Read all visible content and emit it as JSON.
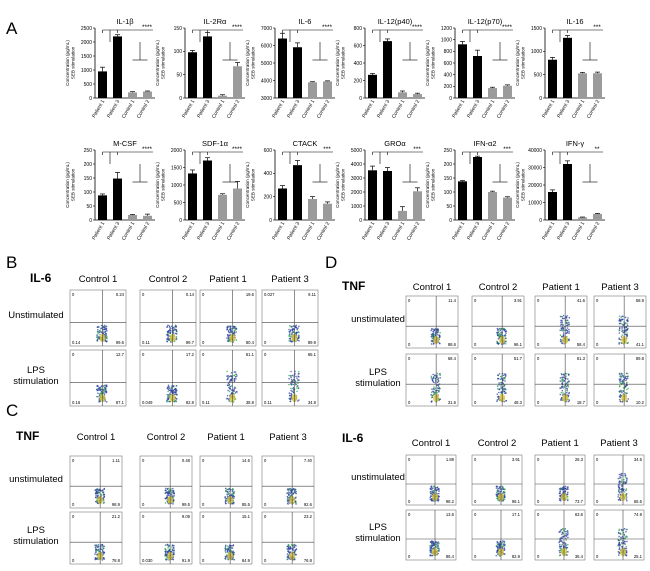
{
  "panel_labels": {
    "A": "A",
    "B": "B",
    "C": "C",
    "D": "D"
  },
  "bar_ylabel_lines": [
    "Concentration (pg/mL)",
    "SEB stimulation"
  ],
  "chart_data": [
    {
      "type": "bar",
      "title": "IL-1β",
      "categories": [
        "Patient 1",
        "Patient 3",
        "Control 1",
        "Control 2"
      ],
      "values": [
        950,
        2200,
        200,
        230
      ],
      "errors": [
        150,
        60,
        25,
        20
      ],
      "ylim": [
        0,
        2500
      ],
      "yticks": [
        0,
        500,
        1000,
        1500,
        2000,
        2500
      ],
      "sig": "****"
    },
    {
      "type": "bar",
      "title": "IL-2Rα",
      "categories": [
        "Patient 1",
        "Patient 3",
        "Control 1",
        "Control 2"
      ],
      "values": [
        98,
        132,
        5,
        68
      ],
      "errors": [
        4,
        8,
        2,
        8
      ],
      "ylim": [
        0,
        150
      ],
      "yticks": [
        0,
        50,
        100,
        150
      ],
      "sig": "****"
    },
    {
      "type": "bar",
      "title": "IL-6",
      "categories": [
        "Patient 1",
        "Patient 3",
        "Control 1",
        "Control 2"
      ],
      "values": [
        6400,
        5900,
        3900,
        3950
      ],
      "errors": [
        300,
        250,
        30,
        30
      ],
      "ylim": [
        3000,
        7000
      ],
      "yticks": [
        3000,
        4000,
        5000,
        6000,
        7000
      ],
      "sig": "****"
    },
    {
      "type": "bar",
      "title": "IL-12(p40)",
      "categories": [
        "Patient 1",
        "Patient 3",
        "Control 1",
        "Control 2"
      ],
      "values": [
        265,
        650,
        65,
        45
      ],
      "errors": [
        15,
        25,
        15,
        10
      ],
      "ylim": [
        0,
        800
      ],
      "yticks": [
        0,
        200,
        400,
        600,
        800
      ],
      "sig": "****"
    },
    {
      "type": "bar",
      "title": "IL-12(p70)",
      "categories": [
        "Patient 1",
        "Patient 3",
        "Control 1",
        "Control 2"
      ],
      "values": [
        920,
        720,
        170,
        210
      ],
      "errors": [
        50,
        100,
        15,
        15
      ],
      "ylim": [
        0,
        1200
      ],
      "yticks": [
        0,
        200,
        400,
        600,
        800,
        1000,
        1200
      ],
      "sig": "****"
    },
    {
      "type": "bar",
      "title": "IL-16",
      "categories": [
        "Patient 1",
        "Patient 3",
        "Control 1",
        "Control 2"
      ],
      "values": [
        820,
        1290,
        530,
        530
      ],
      "errors": [
        50,
        50,
        20,
        25
      ],
      "ylim": [
        0,
        1500
      ],
      "yticks": [
        0,
        500,
        1000,
        1500
      ],
      "sig": "***"
    },
    {
      "type": "bar",
      "title": "M-CSF",
      "categories": [
        "Patient 1",
        "Patient 3",
        "Control 1",
        "Control 2"
      ],
      "values": [
        88,
        148,
        18,
        15
      ],
      "errors": [
        5,
        22,
        2,
        6
      ],
      "ylim": [
        0,
        250
      ],
      "yticks": [
        0,
        50,
        100,
        150,
        200,
        250
      ],
      "sig": "****"
    },
    {
      "type": "bar",
      "title": "SDF-1α",
      "categories": [
        "Patient 1",
        "Patient 3",
        "Control 1",
        "Control 2"
      ],
      "values": [
        1330,
        1700,
        720,
        900
      ],
      "errors": [
        100,
        80,
        30,
        200
      ],
      "ylim": [
        0,
        2000
      ],
      "yticks": [
        0,
        500,
        1000,
        1500,
        2000
      ],
      "sig": "****"
    },
    {
      "type": "bar",
      "title": "CTACK",
      "categories": [
        "Patient 1",
        "Patient 3",
        "Control 1",
        "Control 2"
      ],
      "values": [
        270,
        470,
        180,
        140
      ],
      "errors": [
        25,
        40,
        20,
        15
      ],
      "ylim": [
        0,
        600
      ],
      "yticks": [
        0,
        200,
        400,
        600
      ],
      "sig": "***"
    },
    {
      "type": "bar",
      "title": "GROα",
      "categories": [
        "Patient 1",
        "Patient 3",
        "Control 1",
        "Control 2"
      ],
      "values": [
        3550,
        3500,
        650,
        2050
      ],
      "errors": [
        300,
        250,
        300,
        250
      ],
      "ylim": [
        0,
        5000
      ],
      "yticks": [
        0,
        1000,
        2000,
        3000,
        4000,
        5000
      ],
      "sig": "***"
    },
    {
      "type": "bar",
      "title": "IFN-α2",
      "categories": [
        "Patient 1",
        "Patient 3",
        "Control 1",
        "Control 2"
      ],
      "values": [
        138,
        225,
        100,
        80
      ],
      "errors": [
        3,
        3,
        3,
        3
      ],
      "ylim": [
        0,
        250
      ],
      "yticks": [
        0,
        50,
        100,
        150,
        200,
        250
      ],
      "sig": "***"
    },
    {
      "type": "bar",
      "title": "IFN-γ",
      "categories": [
        "Patient 1",
        "Patient 3",
        "Control 1",
        "Control 2"
      ],
      "values": [
        16000,
        32000,
        1500,
        3500
      ],
      "errors": [
        1200,
        1800,
        200,
        300
      ],
      "ylim": [
        0,
        40000
      ],
      "yticks": [
        0,
        10000,
        20000,
        30000,
        40000
      ],
      "sig": "**"
    }
  ],
  "flow_panels": [
    {
      "panel": "B",
      "title": "IL-6",
      "columns": [
        "Control 1",
        "Control 2",
        "Patient 1",
        "Patient 3"
      ],
      "rows": [
        {
          "label": [
            "Unstimulated"
          ],
          "cells": [
            {
              "ul": "0",
              "ur": "0.24",
              "ll": "0.14",
              "lr": "99.6"
            },
            {
              "ul": "0",
              "ur": "0.14",
              "ll": "0.11",
              "lr": "99.7"
            },
            {
              "ul": "0",
              "ur": "19.6",
              "ll": "0",
              "lr": "80.4"
            },
            {
              "ul": "0.027",
              "ur": "9.11",
              "ll": "0",
              "lr": "89.9"
            }
          ]
        },
        {
          "label": [
            "LPS",
            "stimulation"
          ],
          "cells": [
            {
              "ul": "0",
              "ur": "12.7",
              "ll": "0.16",
              "lr": "87.1"
            },
            {
              "ul": "0",
              "ur": "17.2",
              "ll": "0.049",
              "lr": "82.8"
            },
            {
              "ul": "0",
              "ur": "61.1",
              "ll": "0.11",
              "lr": "38.8"
            },
            {
              "ul": "0",
              "ur": "65.1",
              "ll": "0.11",
              "lr": "34.8"
            }
          ]
        }
      ]
    },
    {
      "panel": "C",
      "title": "TNF",
      "columns": [
        "Control 1",
        "Control 2",
        "Patient 1",
        "Patient 3"
      ],
      "rows": [
        {
          "label": [
            "unstimulated"
          ],
          "cells": [
            {
              "ul": "0",
              "ur": "1.11",
              "ll": "0",
              "lr": "98.9"
            },
            {
              "ul": "0",
              "ur": "0.48",
              "ll": "0",
              "lr": "99.5"
            },
            {
              "ul": "0",
              "ur": "14.5",
              "ll": "0",
              "lr": "85.5"
            },
            {
              "ul": "0",
              "ur": "7.40",
              "ll": "0",
              "lr": "92.6"
            }
          ]
        },
        {
          "label": [
            "LPS",
            "stimulation"
          ],
          "cells": [
            {
              "ul": "0",
              "ur": "21.2",
              "ll": "0",
              "lr": "78.8"
            },
            {
              "ul": "0",
              "ur": "9.09",
              "ll": "0.030",
              "lr": "91.9"
            },
            {
              "ul": "0",
              "ur": "15.1",
              "ll": "0",
              "lr": "84.9"
            },
            {
              "ul": "0",
              "ur": "23.2",
              "ll": "0",
              "lr": "76.8"
            }
          ]
        }
      ]
    },
    {
      "panel": "D",
      "title": "TNF",
      "columns": [
        "Control 1",
        "Control 2",
        "Patient 1",
        "Patient 3"
      ],
      "rows": [
        {
          "label": [
            "unstimulated"
          ],
          "cells": [
            {
              "ul": "0",
              "ur": "11.4",
              "ll": "0",
              "lr": "88.6"
            },
            {
              "ul": "0",
              "ur": "3.91",
              "ll": "0",
              "lr": "96.1"
            },
            {
              "ul": "0",
              "ur": "41.6",
              "ll": "0",
              "lr": "58.4"
            },
            {
              "ul": "0",
              "ur": "58.9",
              "ll": "0",
              "lr": "41.1"
            }
          ]
        },
        {
          "label": [
            "LPS",
            "stimulation"
          ],
          "cells": [
            {
              "ul": "0",
              "ur": "68.4",
              "ll": "0",
              "lr": "31.6"
            },
            {
              "ul": "0",
              "ur": "51.7",
              "ll": "0",
              "lr": "48.3"
            },
            {
              "ul": "0",
              "ur": "81.3",
              "ll": "0",
              "lr": "18.7"
            },
            {
              "ul": "0",
              "ur": "89.8",
              "ll": "0",
              "lr": "10.2"
            }
          ]
        }
      ]
    },
    {
      "panel": "D",
      "title": "IL-6",
      "columns": [
        "Control 1",
        "Control 2",
        "Patient 1",
        "Patient 3"
      ],
      "rows": [
        {
          "label": [
            "unstimulated"
          ],
          "cells": [
            {
              "ul": "0",
              "ur": "1.89",
              "ll": "0",
              "lr": "98.2"
            },
            {
              "ul": "0",
              "ur": "3.91",
              "ll": "0",
              "lr": "96.1"
            },
            {
              "ul": "0",
              "ur": "26.3",
              "ll": "0",
              "lr": "73.7"
            },
            {
              "ul": "0",
              "ur": "34.5",
              "ll": "0",
              "lr": "65.5"
            }
          ]
        },
        {
          "label": [
            "LPS",
            "stimulation"
          ],
          "cells": [
            {
              "ul": "0",
              "ur": "13.6",
              "ll": "0",
              "lr": "86.4"
            },
            {
              "ul": "0",
              "ur": "17.1",
              "ll": "0",
              "lr": "82.9"
            },
            {
              "ul": "0",
              "ur": "63.6",
              "ll": "0",
              "lr": "36.4"
            },
            {
              "ul": "0",
              "ur": "74.9",
              "ll": "0",
              "lr": "25.1"
            }
          ]
        }
      ]
    }
  ],
  "colors": {
    "patient_bar": "#000000",
    "control_bar": "#9b9b9b",
    "scatter_blue": "#2c3fa6",
    "scatter_dense": "#2ea84a",
    "scatter_core": "#d8c63a",
    "gate": "#444444"
  }
}
